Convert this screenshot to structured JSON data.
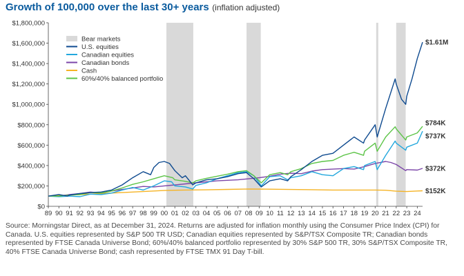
{
  "title": "Growth of 100,000 over the last 30+ years",
  "subtitle": "(inflation adjusted)",
  "source_note": "Source: Morningstar Direct, as at December 31, 2024. Returns are adjusted for inflation monthly using the Consumer Price Index (CPI) for Canada. U.S. equities represented by S&P 500 TR USD; Canadian equities represented by S&P/TSX Composite TR; Canadian bonds represented by FTSE Canada Universe Bond; 60%/40% balanced portfolio represented by 30% S&P 500 TR, 30% S&P/TSX Composite TR, 40% FTSE Canada Universe Bond; cash represented by FTSE TMX 91 Day T-bill.",
  "chart_data": {
    "type": "line",
    "title": "Growth of 100,000 over the last 30+ years",
    "xlabel": "",
    "ylabel": "",
    "xlim": [
      1989,
      2024.5
    ],
    "ylim": [
      0,
      1800000
    ],
    "grid": false,
    "legend_position": "top-left",
    "x_tick_labels": [
      "89",
      "90",
      "91",
      "92",
      "93",
      "94",
      "95",
      "96",
      "97",
      "98",
      "99",
      "00",
      "01",
      "02",
      "03",
      "04",
      "05",
      "06",
      "07",
      "08",
      "09",
      "10",
      "11",
      "12",
      "13",
      "14",
      "15",
      "16",
      "17",
      "18",
      "19",
      "20",
      "21",
      "22",
      "23",
      "24"
    ],
    "y_ticks": [
      0,
      200000,
      400000,
      600000,
      800000,
      1000000,
      1200000,
      1400000,
      1600000,
      1800000
    ],
    "y_tick_labels": [
      "$0",
      "$200,000",
      "$400,000",
      "$600,000",
      "$800,000",
      "$1,000,000",
      "$1,200,000",
      "$1,400,000",
      "$1,600,000",
      "$1,800,000"
    ],
    "bear_markets": {
      "label": "Bear markets",
      "color": "#d9d9d9",
      "periods": [
        [
          2000.2,
          2002.75
        ],
        [
          2007.8,
          2009.15
        ],
        [
          2020.1,
          2020.3
        ],
        [
          2022.0,
          2022.9
        ]
      ]
    },
    "series": [
      {
        "name": "U.S. equities",
        "color": "#0e4a8f",
        "end_label": "$1.61M",
        "points": [
          [
            1989,
            100000
          ],
          [
            1990,
            115000
          ],
          [
            1990.8,
            100000
          ],
          [
            1991,
            110000
          ],
          [
            1992,
            125000
          ],
          [
            1993,
            135000
          ],
          [
            1994,
            140000
          ],
          [
            1995,
            160000
          ],
          [
            1996,
            210000
          ],
          [
            1997,
            280000
          ],
          [
            1998,
            340000
          ],
          [
            1998.7,
            310000
          ],
          [
            1999,
            380000
          ],
          [
            1999.5,
            430000
          ],
          [
            2000,
            440000
          ],
          [
            2000.5,
            420000
          ],
          [
            2001,
            350000
          ],
          [
            2001.7,
            280000
          ],
          [
            2002,
            300000
          ],
          [
            2002.7,
            210000
          ],
          [
            2003,
            230000
          ],
          [
            2004,
            260000
          ],
          [
            2005,
            270000
          ],
          [
            2006,
            290000
          ],
          [
            2007,
            320000
          ],
          [
            2007.8,
            330000
          ],
          [
            2008.5,
            270000
          ],
          [
            2009.2,
            190000
          ],
          [
            2010,
            250000
          ],
          [
            2011,
            270000
          ],
          [
            2011.7,
            250000
          ],
          [
            2012,
            290000
          ],
          [
            2013,
            360000
          ],
          [
            2014,
            440000
          ],
          [
            2015,
            500000
          ],
          [
            2016,
            520000
          ],
          [
            2017,
            600000
          ],
          [
            2018,
            680000
          ],
          [
            2018.9,
            620000
          ],
          [
            2019,
            650000
          ],
          [
            2020,
            800000
          ],
          [
            2020.2,
            680000
          ],
          [
            2021,
            960000
          ],
          [
            2021.9,
            1250000
          ],
          [
            2022,
            1200000
          ],
          [
            2022.5,
            1050000
          ],
          [
            2022.9,
            1000000
          ],
          [
            2023,
            1080000
          ],
          [
            2023.5,
            1250000
          ],
          [
            2024,
            1450000
          ],
          [
            2024.5,
            1610000
          ]
        ]
      },
      {
        "name": "Canadian equities",
        "color": "#22a7dd",
        "end_label": "$737K",
        "points": [
          [
            1989,
            100000
          ],
          [
            1990,
            95000
          ],
          [
            1991,
            100000
          ],
          [
            1992,
            95000
          ],
          [
            1993,
            120000
          ],
          [
            1994,
            115000
          ],
          [
            1995,
            130000
          ],
          [
            1996,
            160000
          ],
          [
            1997,
            185000
          ],
          [
            1998,
            160000
          ],
          [
            1999,
            200000
          ],
          [
            2000,
            250000
          ],
          [
            2000.7,
            240000
          ],
          [
            2001,
            200000
          ],
          [
            2002,
            190000
          ],
          [
            2002.7,
            170000
          ],
          [
            2003,
            205000
          ],
          [
            2004,
            230000
          ],
          [
            2005,
            270000
          ],
          [
            2006,
            300000
          ],
          [
            2007,
            330000
          ],
          [
            2007.8,
            340000
          ],
          [
            2008.5,
            300000
          ],
          [
            2009.2,
            200000
          ],
          [
            2010,
            290000
          ],
          [
            2011,
            300000
          ],
          [
            2011.7,
            260000
          ],
          [
            2012,
            280000
          ],
          [
            2013,
            300000
          ],
          [
            2014,
            340000
          ],
          [
            2015,
            310000
          ],
          [
            2016,
            300000
          ],
          [
            2017,
            370000
          ],
          [
            2018,
            390000
          ],
          [
            2018.9,
            360000
          ],
          [
            2019,
            400000
          ],
          [
            2020,
            440000
          ],
          [
            2020.2,
            360000
          ],
          [
            2021,
            500000
          ],
          [
            2021.9,
            640000
          ],
          [
            2022,
            620000
          ],
          [
            2022.9,
            550000
          ],
          [
            2023,
            580000
          ],
          [
            2024,
            620000
          ],
          [
            2024.5,
            737000
          ]
        ]
      },
      {
        "name": "Canadian bonds",
        "color": "#7b45a8",
        "end_label": "$372K",
        "points": [
          [
            1989,
            100000
          ],
          [
            1990,
            100000
          ],
          [
            1991,
            115000
          ],
          [
            1992,
            125000
          ],
          [
            1993,
            140000
          ],
          [
            1994,
            130000
          ],
          [
            1995,
            150000
          ],
          [
            1996,
            165000
          ],
          [
            1997,
            180000
          ],
          [
            1998,
            195000
          ],
          [
            1999,
            190000
          ],
          [
            2000,
            200000
          ],
          [
            2001,
            210000
          ],
          [
            2002,
            220000
          ],
          [
            2003,
            230000
          ],
          [
            2004,
            240000
          ],
          [
            2005,
            250000
          ],
          [
            2006,
            255000
          ],
          [
            2007,
            260000
          ],
          [
            2008,
            270000
          ],
          [
            2009,
            280000
          ],
          [
            2010,
            295000
          ],
          [
            2011,
            315000
          ],
          [
            2012,
            325000
          ],
          [
            2013,
            320000
          ],
          [
            2014,
            345000
          ],
          [
            2015,
            360000
          ],
          [
            2016,
            365000
          ],
          [
            2017,
            370000
          ],
          [
            2018,
            365000
          ],
          [
            2019,
            390000
          ],
          [
            2020,
            420000
          ],
          [
            2021,
            440000
          ],
          [
            2021.5,
            430000
          ],
          [
            2022,
            410000
          ],
          [
            2022.9,
            350000
          ],
          [
            2023,
            360000
          ],
          [
            2024,
            355000
          ],
          [
            2024.5,
            372000
          ]
        ]
      },
      {
        "name": "Cash",
        "color": "#f5b324",
        "end_label": "$152K",
        "points": [
          [
            1989,
            100000
          ],
          [
            1990,
            105000
          ],
          [
            1992,
            115000
          ],
          [
            1994,
            125000
          ],
          [
            1996,
            135000
          ],
          [
            1998,
            145000
          ],
          [
            2000,
            155000
          ],
          [
            2002,
            160000
          ],
          [
            2004,
            162000
          ],
          [
            2006,
            166000
          ],
          [
            2008,
            170000
          ],
          [
            2010,
            168000
          ],
          [
            2012,
            165000
          ],
          [
            2014,
            163000
          ],
          [
            2016,
            160000
          ],
          [
            2018,
            160000
          ],
          [
            2020,
            160000
          ],
          [
            2021,
            158000
          ],
          [
            2022,
            148000
          ],
          [
            2023,
            145000
          ],
          [
            2024,
            150000
          ],
          [
            2024.5,
            152000
          ]
        ]
      },
      {
        "name": "60%/40% balanced portfolio",
        "color": "#5cc447",
        "end_label": "$784K",
        "points": [
          [
            1989,
            100000
          ],
          [
            1990,
            100000
          ],
          [
            1991,
            110000
          ],
          [
            1992,
            115000
          ],
          [
            1993,
            135000
          ],
          [
            1994,
            130000
          ],
          [
            1995,
            150000
          ],
          [
            1996,
            180000
          ],
          [
            1997,
            215000
          ],
          [
            1998,
            240000
          ],
          [
            1999,
            270000
          ],
          [
            2000,
            300000
          ],
          [
            2000.8,
            280000
          ],
          [
            2001,
            260000
          ],
          [
            2002,
            245000
          ],
          [
            2002.7,
            230000
          ],
          [
            2003,
            250000
          ],
          [
            2004,
            275000
          ],
          [
            2005,
            295000
          ],
          [
            2006,
            315000
          ],
          [
            2007,
            340000
          ],
          [
            2007.8,
            350000
          ],
          [
            2008.5,
            300000
          ],
          [
            2009.2,
            230000
          ],
          [
            2010,
            310000
          ],
          [
            2011,
            330000
          ],
          [
            2011.7,
            310000
          ],
          [
            2012,
            340000
          ],
          [
            2013,
            370000
          ],
          [
            2014,
            420000
          ],
          [
            2015,
            440000
          ],
          [
            2016,
            450000
          ],
          [
            2017,
            500000
          ],
          [
            2018,
            530000
          ],
          [
            2018.9,
            500000
          ],
          [
            2019,
            540000
          ],
          [
            2020,
            620000
          ],
          [
            2020.2,
            540000
          ],
          [
            2021,
            680000
          ],
          [
            2021.9,
            780000
          ],
          [
            2022,
            760000
          ],
          [
            2022.9,
            650000
          ],
          [
            2023,
            680000
          ],
          [
            2024,
            720000
          ],
          [
            2024.5,
            784000
          ]
        ]
      }
    ]
  }
}
